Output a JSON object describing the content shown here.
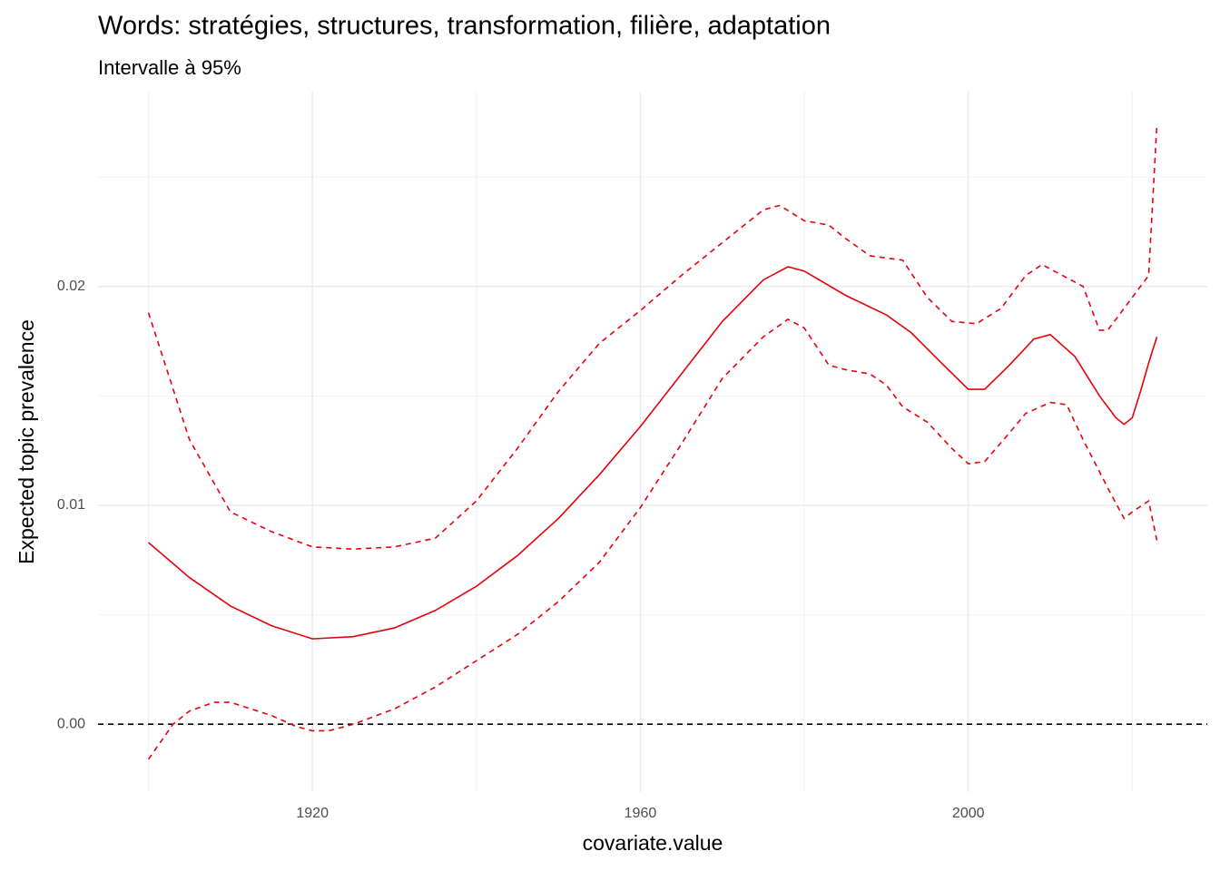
{
  "chart_data": {
    "type": "line",
    "title": "Words: stratégies, structures, transformation, filière, adaptation",
    "subtitle": "Intervalle à 95%",
    "x_label": "covariate.value",
    "y_label": "Expected topic prevalence",
    "xlim": [
      1893.85,
      2029.15
    ],
    "ylim": [
      -0.0031,
      0.0289
    ],
    "xticks": [
      1920,
      1960,
      2000
    ],
    "yticks": [
      {
        "value": 0,
        "label": "0.00"
      },
      0.01,
      0.02
    ],
    "minor_xticks": [
      1900,
      1940,
      1980,
      2020
    ],
    "minor_yticks": [
      0.005,
      0.015,
      0.025
    ],
    "grid": true,
    "hline": 0,
    "series": [
      {
        "color": "#e8000b",
        "dashed": false,
        "x": [
          1900,
          1905,
          1910,
          1915,
          1920,
          1925,
          1930,
          1935,
          1940,
          1945,
          1950,
          1955,
          1960,
          1965,
          1970,
          1975,
          1978,
          1980,
          1985,
          1990,
          1993,
          1997,
          2000,
          2002,
          2005,
          2008,
          2010,
          2013,
          2016,
          2018,
          2019,
          2020,
          2021,
          2022,
          2023
        ],
        "values": [
          0.0083,
          0.0067,
          0.0054,
          0.0045,
          0.0039,
          0.004,
          0.0044,
          0.0052,
          0.0063,
          0.0077,
          0.0094,
          0.0114,
          0.0136,
          0.016,
          0.0184,
          0.0203,
          0.0209,
          0.0207,
          0.0196,
          0.0187,
          0.0179,
          0.0164,
          0.0153,
          0.0153,
          0.0164,
          0.0176,
          0.0178,
          0.0168,
          0.015,
          0.014,
          0.0137,
          0.014,
          0.0152,
          0.0165,
          0.0177
        ]
      },
      {
        "color": "#e8000b",
        "dashed": true,
        "x": [
          1900,
          1905,
          1910,
          1915,
          1920,
          1925,
          1930,
          1935,
          1940,
          1945,
          1950,
          1955,
          1960,
          1965,
          1970,
          1975,
          1977,
          1980,
          1983,
          1985,
          1988,
          1992,
          1995,
          1998,
          2001,
          2004,
          2007,
          2009,
          2011,
          2014,
          2016,
          2017,
          2019,
          2021,
          2022,
          2023
        ],
        "values": [
          0.0188,
          0.013,
          0.0097,
          0.0088,
          0.0081,
          0.008,
          0.0081,
          0.0085,
          0.0102,
          0.0126,
          0.0152,
          0.0174,
          0.0189,
          0.0205,
          0.022,
          0.0235,
          0.0237,
          0.023,
          0.0228,
          0.0222,
          0.0214,
          0.0212,
          0.0195,
          0.0184,
          0.0183,
          0.019,
          0.0205,
          0.021,
          0.0206,
          0.02,
          0.018,
          0.018,
          0.019,
          0.02,
          0.0205,
          0.0274
        ]
      },
      {
        "color": "#e8000b",
        "dashed": true,
        "x": [
          1900,
          1903,
          1905,
          1908,
          1910,
          1915,
          1918,
          1920,
          1922,
          1925,
          1930,
          1935,
          1940,
          1945,
          1950,
          1955,
          1960,
          1965,
          1970,
          1975,
          1978,
          1980,
          1983,
          1985,
          1988,
          1990,
          1992,
          1995,
          1998,
          2000,
          2002,
          2005,
          2007,
          2010,
          2012,
          2014,
          2017,
          2019,
          2020,
          2022,
          2023
        ],
        "values": [
          -0.0016,
          0.0,
          0.0006,
          0.001,
          0.001,
          0.0004,
          -0.0001,
          -0.0003,
          -0.0003,
          0.0,
          0.0007,
          0.0017,
          0.0029,
          0.0041,
          0.0056,
          0.0074,
          0.0099,
          0.0128,
          0.0158,
          0.0177,
          0.0185,
          0.0181,
          0.0164,
          0.0162,
          0.016,
          0.0155,
          0.0145,
          0.0138,
          0.0126,
          0.0119,
          0.012,
          0.0133,
          0.0142,
          0.0147,
          0.0146,
          0.013,
          0.0108,
          0.0094,
          0.0097,
          0.0102,
          0.0084
        ]
      }
    ]
  }
}
